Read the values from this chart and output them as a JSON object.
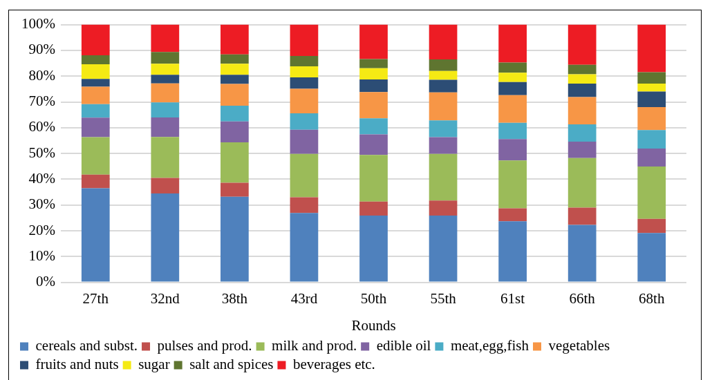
{
  "chart_data": {
    "type": "bar",
    "stacked": true,
    "xlabel": "Rounds",
    "categories": [
      "27th",
      "32nd",
      "38th",
      "43rd",
      "50th",
      "55th",
      "61st",
      "66th",
      "68th"
    ],
    "series": [
      {
        "name": "cereals and subst.",
        "color": "#4f81bd",
        "values": [
          36.5,
          34.5,
          33.2,
          26.9,
          25.9,
          25.9,
          23.7,
          22.3,
          19.1
        ]
      },
      {
        "name": "pulses and prod.",
        "color": "#c0504d",
        "values": [
          5.3,
          6.0,
          5.4,
          6.1,
          5.4,
          5.8,
          5.0,
          6.7,
          5.5
        ]
      },
      {
        "name": "milk and prod.",
        "color": "#9bbb59",
        "values": [
          14.5,
          15.9,
          15.7,
          16.8,
          18.1,
          18.1,
          18.6,
          19.2,
          20.3
        ]
      },
      {
        "name": "edible oil",
        "color": "#8064a2",
        "values": [
          7.6,
          7.6,
          8.1,
          9.4,
          8.0,
          6.5,
          8.3,
          6.4,
          7.0
        ]
      },
      {
        "name": "meat,egg,fish",
        "color": "#4bacc6",
        "values": [
          5.2,
          5.8,
          6.1,
          6.4,
          6.2,
          6.5,
          6.3,
          6.7,
          7.2
        ]
      },
      {
        "name": "vegetables",
        "color": "#f79646",
        "values": [
          6.8,
          7.4,
          8.5,
          9.5,
          10.2,
          10.9,
          10.7,
          10.6,
          8.9
        ]
      },
      {
        "name": "fruits and nuts",
        "color": "#2c4d75",
        "values": [
          3.0,
          3.3,
          3.5,
          4.4,
          4.9,
          4.9,
          5.1,
          5.2,
          6.0
        ]
      },
      {
        "name": "sugar",
        "color": "#f5ea14",
        "values": [
          5.7,
          4.3,
          4.3,
          4.3,
          4.4,
          3.4,
          3.6,
          3.6,
          3.1
        ]
      },
      {
        "name": "salt and spices",
        "color": "#5f7530",
        "values": [
          3.5,
          4.6,
          3.6,
          4.0,
          3.5,
          4.5,
          4.0,
          3.7,
          4.4
        ]
      },
      {
        "name": "beverages etc.",
        "color": "#ed1c24",
        "values": [
          11.9,
          10.6,
          11.6,
          12.2,
          13.4,
          13.5,
          14.7,
          15.6,
          18.5
        ]
      }
    ],
    "ylim": [
      0,
      100
    ],
    "yticks": [
      {
        "value": 0,
        "label": "0%"
      },
      {
        "value": 10,
        "label": "10%"
      },
      {
        "value": 20,
        "label": "20%"
      },
      {
        "value": 30,
        "label": "30%"
      },
      {
        "value": 40,
        "label": "40%"
      },
      {
        "value": 50,
        "label": "50%"
      },
      {
        "value": 60,
        "label": "60%"
      },
      {
        "value": 70,
        "label": "70%"
      },
      {
        "value": 80,
        "label": "80%"
      },
      {
        "value": 90,
        "label": "90%"
      },
      {
        "value": 100,
        "label": "100%"
      }
    ],
    "grid": "y",
    "legend": "bottom"
  }
}
